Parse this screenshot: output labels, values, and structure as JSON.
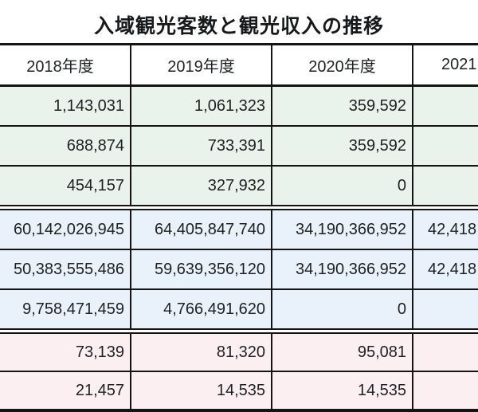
{
  "chart_data": {
    "type": "table",
    "title": "入域観光客数と観光収入の推移",
    "columns": [
      "2018年度",
      "2019年度",
      "2020年度",
      "2021"
    ],
    "sections": [
      {
        "bg": "#E9F2EB",
        "rows": [
          [
            "1,143,031",
            "1,061,323",
            "359,592",
            ""
          ],
          [
            "688,874",
            "733,391",
            "359,592",
            ""
          ],
          [
            "454,157",
            "327,932",
            "0",
            ""
          ]
        ]
      },
      {
        "bg": "#E9F1FA",
        "rows": [
          [
            "60,142,026,945",
            "64,405,847,740",
            "34,190,366,952",
            "42,418"
          ],
          [
            "50,383,555,486",
            "59,639,356,120",
            "34,190,366,952",
            "42,418"
          ],
          [
            "9,758,471,459",
            "4,766,491,620",
            "0",
            ""
          ]
        ]
      },
      {
        "bg": "#FCEFF2",
        "rows": [
          [
            "73,139",
            "81,320",
            "95,081",
            ""
          ],
          [
            "21,457",
            "14,535",
            "14,535",
            ""
          ]
        ]
      }
    ]
  },
  "colors": {
    "border": "#141414",
    "header_bg": "#FFFFFF",
    "section_green": "#E9F2EB",
    "section_blue": "#E9F1FA",
    "section_pink": "#FCEFF2",
    "text": "#1E2124"
  }
}
